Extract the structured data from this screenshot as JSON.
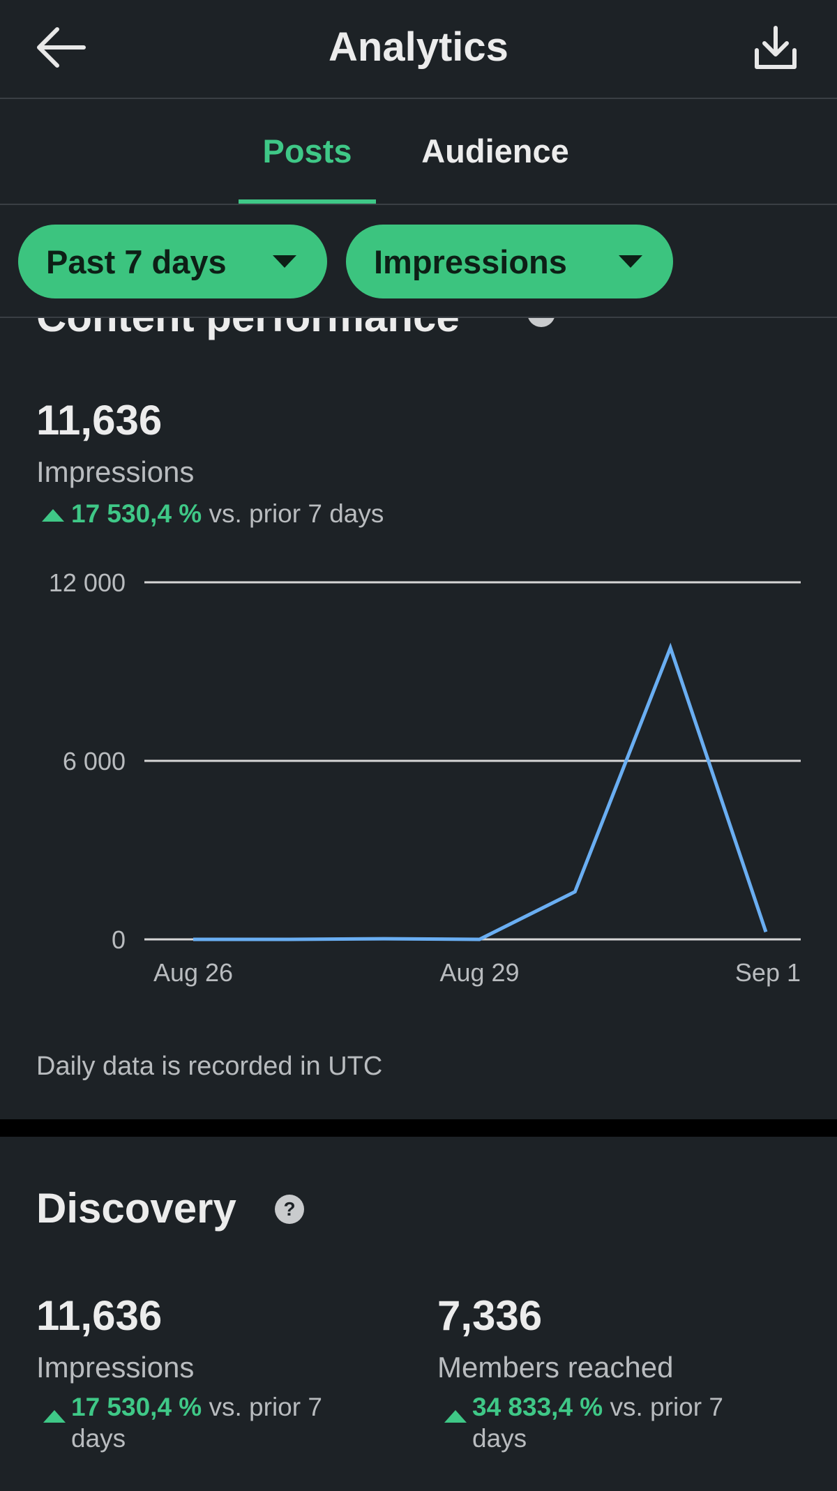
{
  "header": {
    "title": "Analytics"
  },
  "tabs": [
    "Posts",
    "Audience"
  ],
  "filters": [
    "Past 7 days",
    "Impressions"
  ],
  "content_performance": {
    "title": "Content performance",
    "total": "11,636",
    "metric": "Impressions",
    "change": "17 530,4 %",
    "comparison": "vs. prior 7 days",
    "note": "Daily data is recorded in UTC"
  },
  "chart_data": {
    "type": "line",
    "categories": [
      "Aug 26",
      null,
      null,
      "Aug 29",
      null,
      null,
      "Sep 1"
    ],
    "values": [
      0,
      0,
      20,
      0,
      1600,
      9800,
      250
    ],
    "color": "#6aaef2",
    "ylim": [
      0,
      12000
    ],
    "yticks": [
      0,
      {
        "value": 6000,
        "label": "6 000"
      },
      {
        "value": 12000,
        "label": "12 000"
      }
    ],
    "grid": true
  },
  "discovery": {
    "title": "Discovery",
    "stats": [
      {
        "value": "11,636",
        "label": "Impressions",
        "change": "17 530,4 %",
        "comparison": "vs. prior 7 days"
      },
      {
        "value": "7,336",
        "label": "Members reached",
        "change": "34 833,4 %",
        "comparison": "vs. prior 7 days"
      }
    ]
  }
}
